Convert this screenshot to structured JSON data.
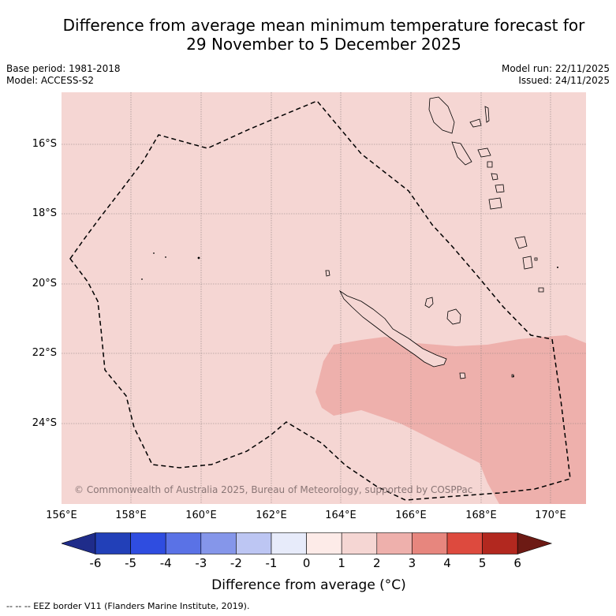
{
  "title_line1": "Difference from average mean minimum temperature forecast for",
  "title_line2": "29 November to 5 December 2025",
  "base_period": "Base period: 1981-2018",
  "model": "Model: ACCESS-S2",
  "model_run": "Model run: 22/11/2025",
  "issued": "Issued: 24/11/2025",
  "copyright": "© Commonwealth of Australia 2025, Bureau of Meteorology, supported by COSPPac",
  "lat_labels": [
    "16°S",
    "18°S",
    "20°S",
    "22°S",
    "24°S"
  ],
  "lon_labels": [
    "156°E",
    "158°E",
    "160°E",
    "162°E",
    "164°E",
    "166°E",
    "168°E",
    "170°E"
  ],
  "colorbar": {
    "title": "Difference from average (°C)",
    "ticks": [
      "-6",
      "-5",
      "-4",
      "-3",
      "-2",
      "-1",
      "0",
      "1",
      "2",
      "3",
      "4",
      "5",
      "6"
    ],
    "colors": [
      "#1f2c8a",
      "#2240b8",
      "#2f4de0",
      "#5a72e6",
      "#8596ea",
      "#bdc6f3",
      "#e7ebfa",
      "#fdebe8",
      "#f5d6d3",
      "#eeb0ac",
      "#e7867e",
      "#dd4a3e",
      "#b2281f",
      "#6d1a14"
    ]
  },
  "legend_footnote": "-- -- -- EEZ border V11 (Flanders Marine Institute, 2019).",
  "colors": {
    "background_anomaly": "#f5d6d3",
    "warm_anomaly": "#eeb0ac"
  }
}
